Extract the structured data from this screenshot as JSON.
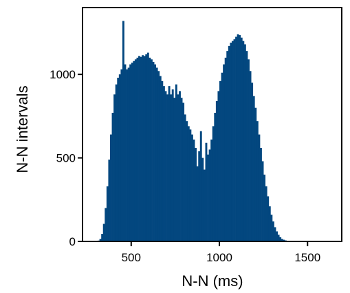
{
  "chart_data": {
    "type": "bar",
    "title": "",
    "xlabel": "N-N (ms)",
    "ylabel": "N-N intervals",
    "xlim": [
      224,
      1694
    ],
    "ylim": [
      0,
      1400
    ],
    "xticks": [
      500,
      1000,
      1500
    ],
    "yticks": [
      0,
      500,
      1000
    ],
    "xtick_labels": [
      "500",
      "1000",
      "1500"
    ],
    "ytick_labels": [
      "0",
      "500",
      "1000"
    ],
    "grid": false,
    "bar_color": "#03477f",
    "bin_width": 10,
    "bins": [
      [
        300,
        2
      ],
      [
        310,
        5
      ],
      [
        320,
        15
      ],
      [
        330,
        45
      ],
      [
        340,
        105
      ],
      [
        350,
        200
      ],
      [
        360,
        330
      ],
      [
        370,
        490
      ],
      [
        380,
        640
      ],
      [
        390,
        770
      ],
      [
        400,
        880
      ],
      [
        410,
        940
      ],
      [
        420,
        980
      ],
      [
        430,
        1000
      ],
      [
        440,
        1030
      ],
      [
        450,
        1320
      ],
      [
        460,
        1060
      ],
      [
        470,
        1030
      ],
      [
        480,
        1040
      ],
      [
        490,
        1060
      ],
      [
        500,
        1070
      ],
      [
        510,
        1080
      ],
      [
        520,
        1090
      ],
      [
        530,
        1100
      ],
      [
        540,
        1110
      ],
      [
        550,
        1105
      ],
      [
        560,
        1115
      ],
      [
        570,
        1110
      ],
      [
        580,
        1120
      ],
      [
        590,
        1130
      ],
      [
        600,
        1100
      ],
      [
        610,
        1090
      ],
      [
        620,
        1075
      ],
      [
        630,
        1060
      ],
      [
        640,
        1040
      ],
      [
        650,
        1020
      ],
      [
        660,
        990
      ],
      [
        670,
        960
      ],
      [
        680,
        930
      ],
      [
        690,
        900
      ],
      [
        700,
        880
      ],
      [
        710,
        930
      ],
      [
        720,
        880
      ],
      [
        730,
        910
      ],
      [
        740,
        860
      ],
      [
        750,
        940
      ],
      [
        760,
        880
      ],
      [
        770,
        900
      ],
      [
        780,
        860
      ],
      [
        790,
        830
      ],
      [
        800,
        760
      ],
      [
        810,
        720
      ],
      [
        820,
        690
      ],
      [
        830,
        670
      ],
      [
        840,
        640
      ],
      [
        850,
        610
      ],
      [
        860,
        560
      ],
      [
        870,
        450
      ],
      [
        880,
        540
      ],
      [
        890,
        660
      ],
      [
        900,
        500
      ],
      [
        910,
        430
      ],
      [
        920,
        590
      ],
      [
        930,
        520
      ],
      [
        940,
        550
      ],
      [
        950,
        610
      ],
      [
        960,
        690
      ],
      [
        970,
        770
      ],
      [
        980,
        840
      ],
      [
        990,
        900
      ],
      [
        1000,
        960
      ],
      [
        1010,
        1010
      ],
      [
        1020,
        1060
      ],
      [
        1030,
        1100
      ],
      [
        1040,
        1140
      ],
      [
        1050,
        1170
      ],
      [
        1060,
        1190
      ],
      [
        1070,
        1200
      ],
      [
        1080,
        1210
      ],
      [
        1090,
        1225
      ],
      [
        1100,
        1240
      ],
      [
        1110,
        1235
      ],
      [
        1120,
        1220
      ],
      [
        1130,
        1200
      ],
      [
        1140,
        1180
      ],
      [
        1150,
        1140
      ],
      [
        1160,
        1090
      ],
      [
        1170,
        1020
      ],
      [
        1180,
        950
      ],
      [
        1190,
        870
      ],
      [
        1200,
        800
      ],
      [
        1210,
        720
      ],
      [
        1220,
        640
      ],
      [
        1230,
        560
      ],
      [
        1240,
        480
      ],
      [
        1250,
        400
      ],
      [
        1260,
        330
      ],
      [
        1270,
        270
      ],
      [
        1280,
        210
      ],
      [
        1290,
        160
      ],
      [
        1300,
        120
      ],
      [
        1310,
        85
      ],
      [
        1320,
        60
      ],
      [
        1330,
        40
      ],
      [
        1340,
        25
      ],
      [
        1350,
        15
      ],
      [
        1360,
        10
      ],
      [
        1370,
        6
      ],
      [
        1380,
        4
      ],
      [
        1390,
        3
      ],
      [
        1400,
        2
      ],
      [
        1410,
        1
      ],
      [
        1420,
        1
      ],
      [
        1430,
        1
      ],
      [
        1440,
        1
      ],
      [
        1450,
        1
      ],
      [
        1460,
        1
      ],
      [
        1470,
        1
      ],
      [
        1480,
        1
      ],
      [
        1490,
        1
      ],
      [
        1500,
        1
      ],
      [
        1510,
        1
      ],
      [
        1520,
        1
      ],
      [
        1530,
        1
      ],
      [
        1540,
        1
      ],
      [
        1550,
        1
      ],
      [
        1560,
        1
      ],
      [
        1570,
        1
      ],
      [
        1580,
        1
      ],
      [
        1590,
        1
      ],
      [
        1600,
        1
      ],
      [
        1610,
        1
      ],
      [
        1620,
        1
      ],
      [
        1630,
        1
      ],
      [
        1640,
        1
      ]
    ]
  }
}
